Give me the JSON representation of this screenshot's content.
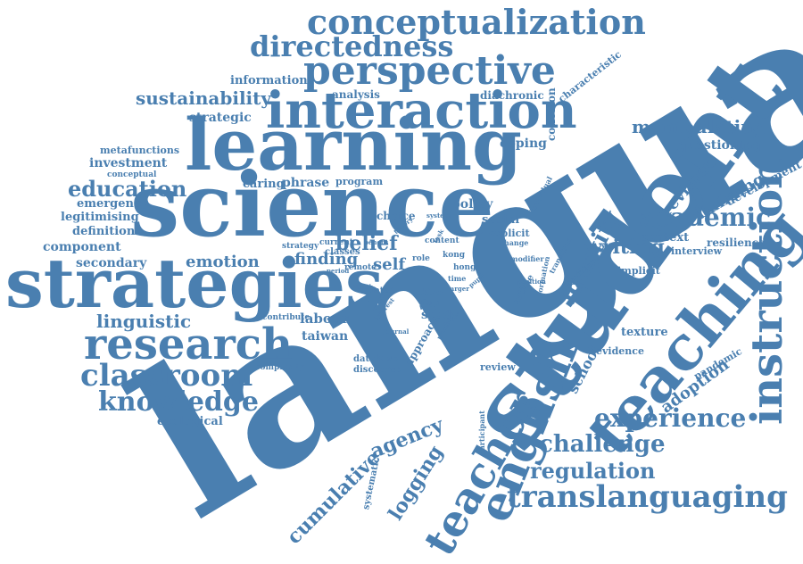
{
  "colors": {
    "word": "#4a7fb0",
    "background": "#ffffff"
  },
  "words": [
    "conceptualization",
    "directedness",
    "perspective",
    "interaction",
    "learning",
    "science",
    "strategies",
    "research",
    "classroom",
    "knowledge",
    "language",
    "student",
    "teaching",
    "instruction",
    "english",
    "teacher",
    "translanguaging",
    "experience",
    "challenge",
    "regulation",
    "academic",
    "identity",
    "writing",
    "belief",
    "finding",
    "self",
    "emotion",
    "education",
    "sustainability",
    "information",
    "analysis",
    "diachronic",
    "cohesion",
    "characteristic",
    "manipulating",
    "questioning",
    "coping",
    "revision",
    "building",
    "development",
    "resilience",
    "context",
    "interview",
    "implicit",
    "texture",
    "evidence",
    "pandemic",
    "adoption",
    "school",
    "agency",
    "cumulative",
    "logging",
    "study",
    "labour",
    "taiwan",
    "linguistic",
    "secondary",
    "component",
    "definition",
    "legitimising",
    "emergency",
    "investment",
    "metafunctions",
    "conceptual",
    "strategic",
    "caring",
    "phrase",
    "program",
    "policy",
    "social",
    "explicit",
    "choice",
    "ecological",
    "complexity",
    "contribute",
    "database",
    "discourse",
    "review",
    "approach",
    "systematic",
    "participant",
    "article",
    "formation",
    "transition",
    "researcher",
    "modifier",
    "change",
    "individual",
    "kong",
    "hong",
    "china",
    "field",
    "wind",
    "classes",
    "current",
    "strategy",
    "related",
    "remote",
    "benefit",
    "depth",
    "content",
    "role",
    "time",
    "larger",
    "system",
    "journal",
    "number",
    "task",
    "position",
    "pupil",
    "theory",
    "period",
    "interest",
    "textual",
    "school-age"
  ]
}
